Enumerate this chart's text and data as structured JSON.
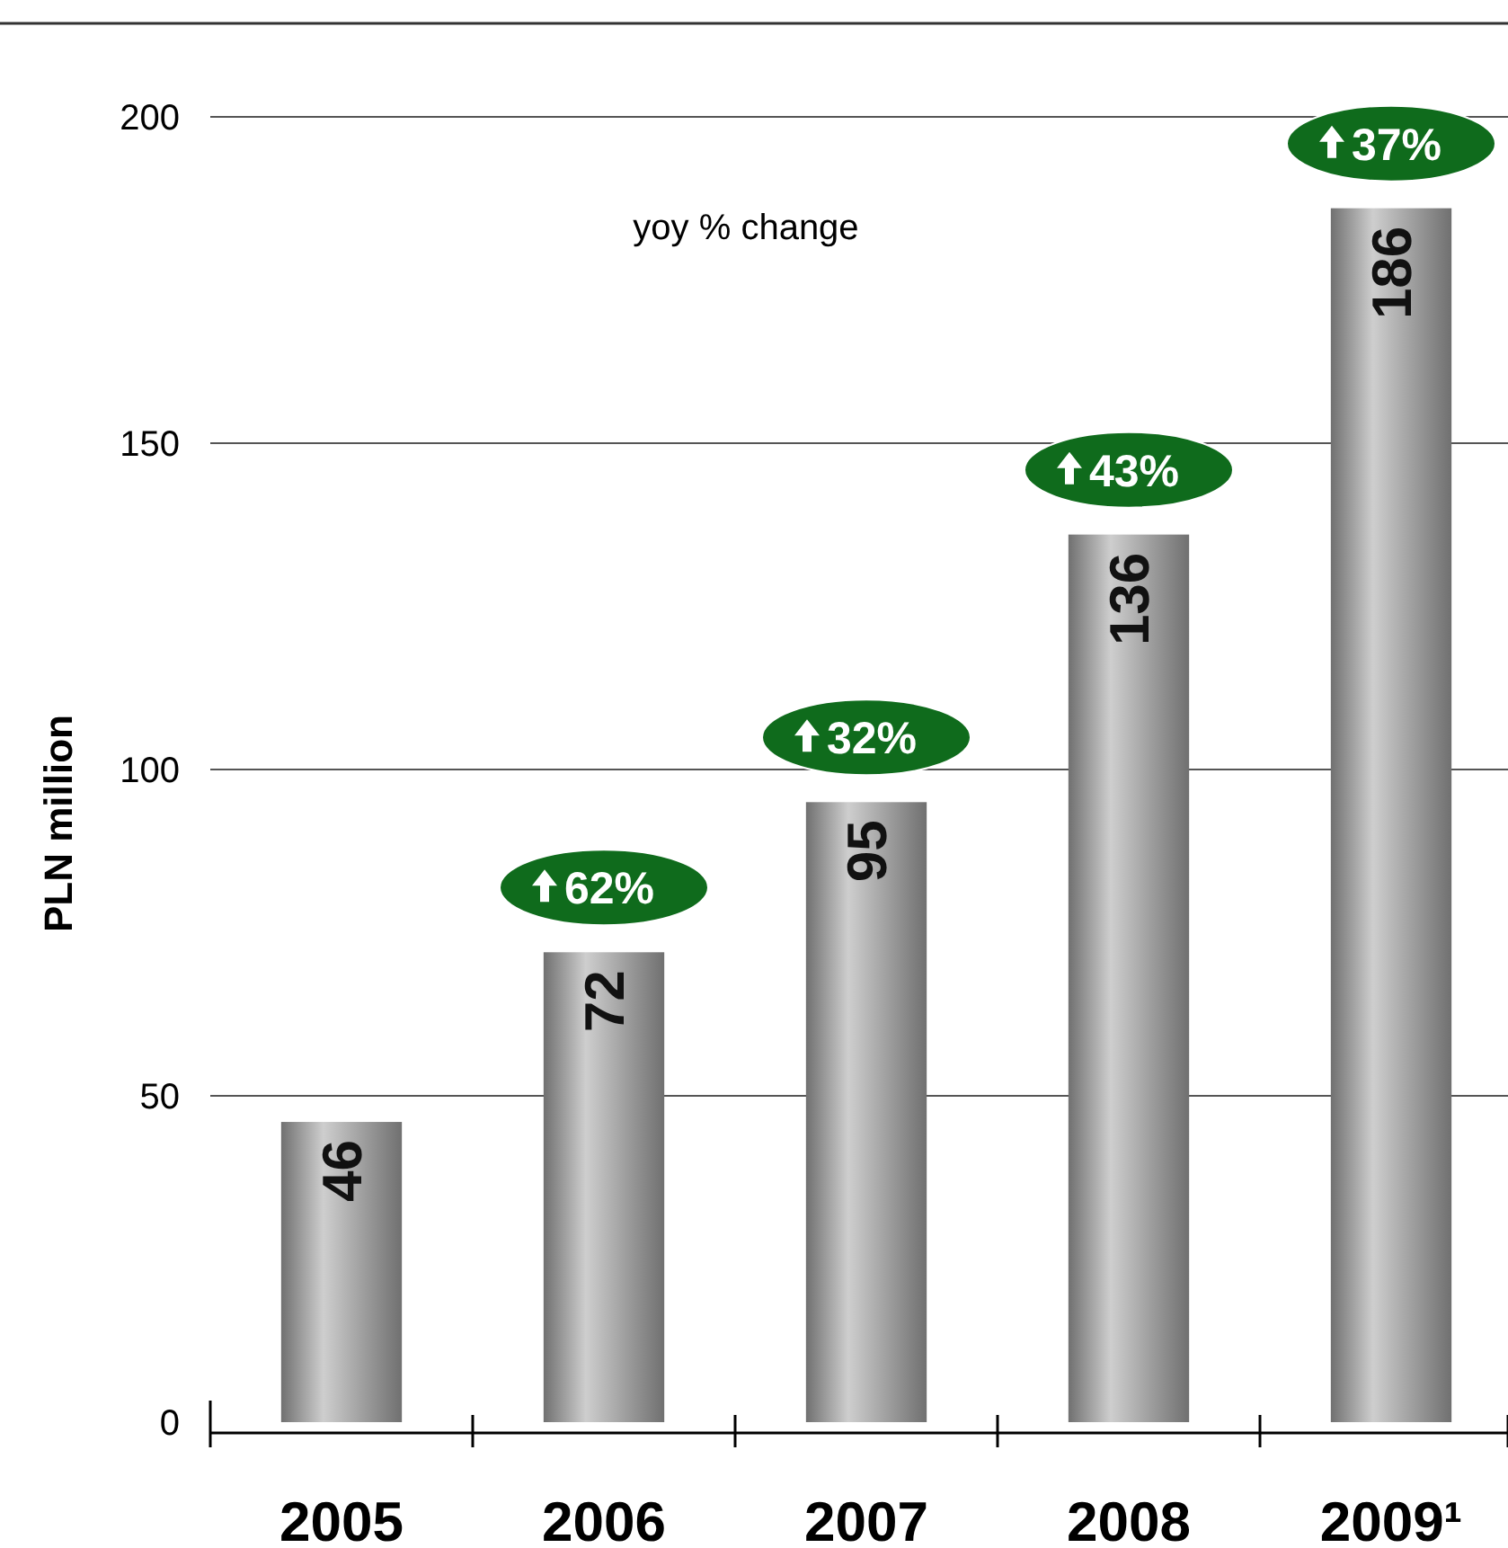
{
  "chart_data": {
    "type": "bar",
    "ylabel": "PLN million",
    "categories": [
      "2005",
      "2006",
      "2007",
      "2008",
      "2009¹"
    ],
    "values": [
      46,
      72,
      95,
      136,
      186
    ],
    "color": "#a6a6a6",
    "ylim": [
      0,
      200
    ],
    "yticks": [
      0,
      50,
      100,
      150,
      200
    ],
    "grid": "y",
    "data_labels": true,
    "annotations": [
      "yoy %  change",
      "62%",
      "32%",
      "43%",
      "37%"
    ]
  }
}
